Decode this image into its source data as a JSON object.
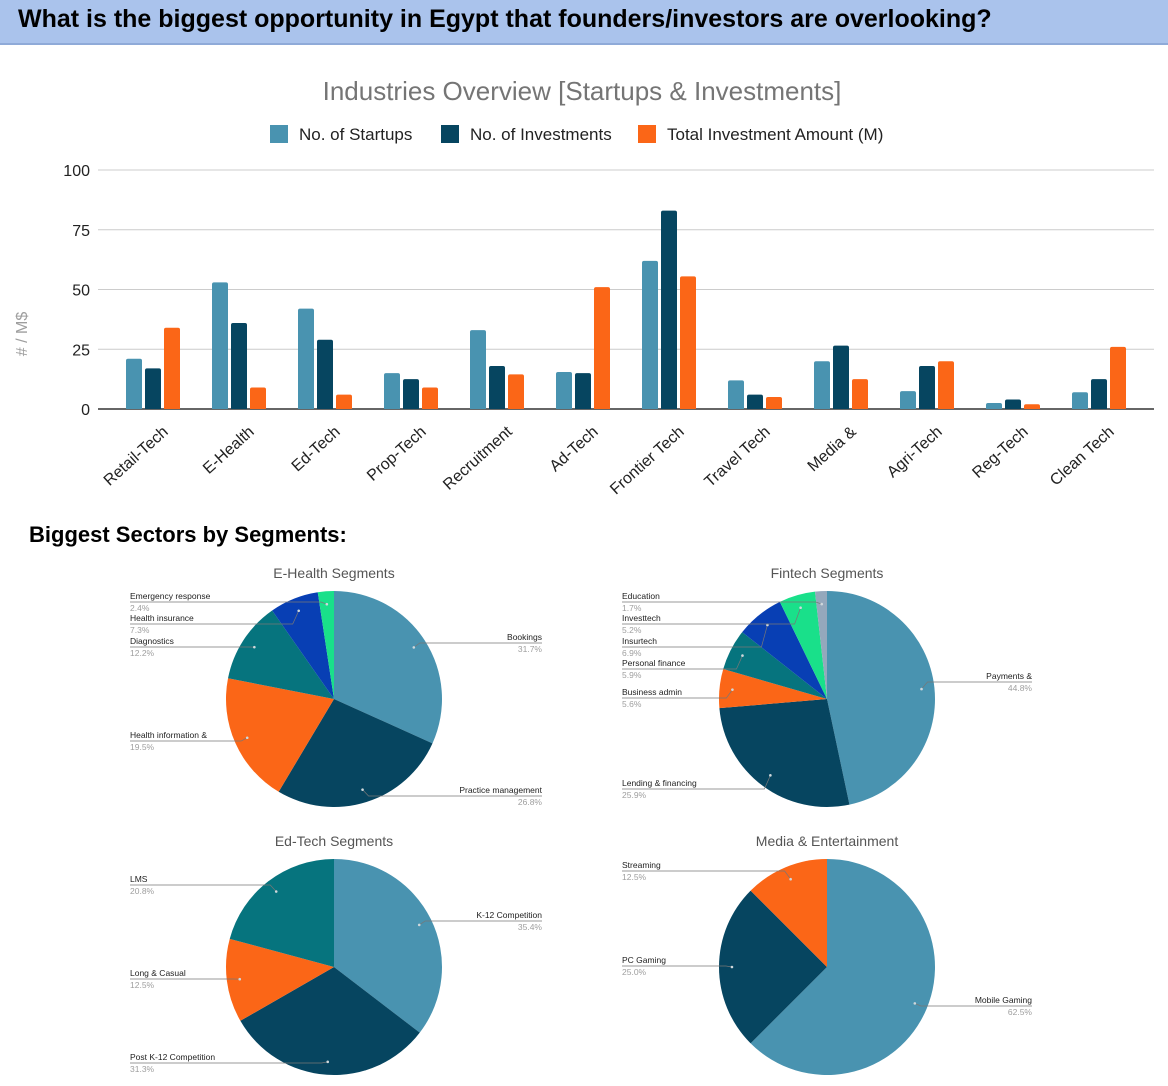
{
  "banner": {
    "question": "What is the biggest opportunity in Egypt that founders/investors are overlooking?"
  },
  "section": {
    "title": "Biggest Sectors by Segments:"
  },
  "colors": {
    "banner_bg": "#aac3ec",
    "startups": "#4993b0",
    "investments": "#064560",
    "amount": "#fb6617",
    "pie_teal": "#06747e",
    "pie_blue": "#083fb4",
    "pie_green": "#19e08a",
    "pie_gray": "#94a8bc"
  },
  "chart_data": [
    {
      "type": "bar",
      "title": "Industries Overview [Startups & Investments]",
      "xlabel": "",
      "ylabel": "# / M$",
      "ylim": [
        0,
        100
      ],
      "yticks": [
        0,
        25,
        50,
        75,
        100
      ],
      "grid": true,
      "legend_position": "top",
      "categories": [
        "Retail-Tech",
        "E-Health",
        "Ed-Tech",
        "Prop-Tech",
        "Recruitment",
        "Ad-Tech",
        "Frontier Tech",
        "Travel Tech",
        "Media &",
        "Agri-Tech",
        "Reg-Tech",
        "Clean Tech"
      ],
      "series": [
        {
          "name": "No. of Startups",
          "color": "#4993b0",
          "values": [
            21,
            53,
            42,
            15,
            33,
            15.5,
            62,
            12,
            20,
            7.5,
            2.5,
            7
          ]
        },
        {
          "name": "No. of Investments",
          "color": "#064560",
          "values": [
            17,
            36,
            29,
            12.5,
            18,
            15,
            83,
            6,
            26.5,
            18,
            4,
            12.5
          ]
        },
        {
          "name": "Total Investment Amount (M)",
          "color": "#fb6617",
          "values": [
            34,
            9,
            6,
            9,
            14.5,
            51,
            55.5,
            5,
            12.5,
            20,
            2,
            26
          ]
        }
      ]
    },
    {
      "type": "pie",
      "title": "E-Health Segments",
      "slices": [
        {
          "label": "Bookings",
          "value": 31.7,
          "pct": "31.7%",
          "color": "#4993b0"
        },
        {
          "label": "Practice management",
          "value": 26.8,
          "pct": "26.8%",
          "color": "#064560"
        },
        {
          "label": "Health information &",
          "value": 19.5,
          "pct": "19.5%",
          "color": "#fb6617"
        },
        {
          "label": "Diagnostics",
          "value": 12.2,
          "pct": "12.2%",
          "color": "#06747e"
        },
        {
          "label": "Health insurance",
          "value": 7.3,
          "pct": "7.3%",
          "color": "#083fb4"
        },
        {
          "label": "Emergency response",
          "value": 2.4,
          "pct": "2.4%",
          "color": "#19e08a"
        }
      ]
    },
    {
      "type": "pie",
      "title": "Fintech Segments",
      "slices": [
        {
          "label": "Payments &",
          "value": 44.8,
          "pct": "44.8%",
          "color": "#4993b0"
        },
        {
          "label": "Lending & financing",
          "value": 25.9,
          "pct": "25.9%",
          "color": "#064560"
        },
        {
          "label": "Business admin",
          "value": 5.6,
          "pct": "5.6%",
          "color": "#fb6617"
        },
        {
          "label": "Personal finance",
          "value": 5.9,
          "pct": "5.9%",
          "color": "#06747e"
        },
        {
          "label": "Insurtech",
          "value": 6.9,
          "pct": "6.9%",
          "color": "#083fb4"
        },
        {
          "label": "Investtech",
          "value": 5.2,
          "pct": "5.2%",
          "color": "#19e08a"
        },
        {
          "label": "Education",
          "value": 1.7,
          "pct": "1.7%",
          "color": "#94a8bc"
        }
      ]
    },
    {
      "type": "pie",
      "title": "Ed-Tech Segments",
      "slices": [
        {
          "label": "K-12 Competition",
          "value": 35.4,
          "pct": "35.4%",
          "color": "#4993b0"
        },
        {
          "label": "Post K-12 Competition",
          "value": 31.3,
          "pct": "31.3%",
          "color": "#064560"
        },
        {
          "label": "Long & Casual",
          "value": 12.5,
          "pct": "12.5%",
          "color": "#fb6617"
        },
        {
          "label": "LMS",
          "value": 20.8,
          "pct": "20.8%",
          "color": "#06747e"
        }
      ]
    },
    {
      "type": "pie",
      "title": "Media & Entertainment",
      "slices": [
        {
          "label": "Mobile Gaming",
          "value": 62.5,
          "pct": "62.5%",
          "color": "#4993b0"
        },
        {
          "label": "PC Gaming",
          "value": 25.0,
          "pct": "25.0%",
          "color": "#064560"
        },
        {
          "label": "Streaming",
          "value": 12.5,
          "pct": "12.5%",
          "color": "#fb6617"
        }
      ]
    }
  ]
}
